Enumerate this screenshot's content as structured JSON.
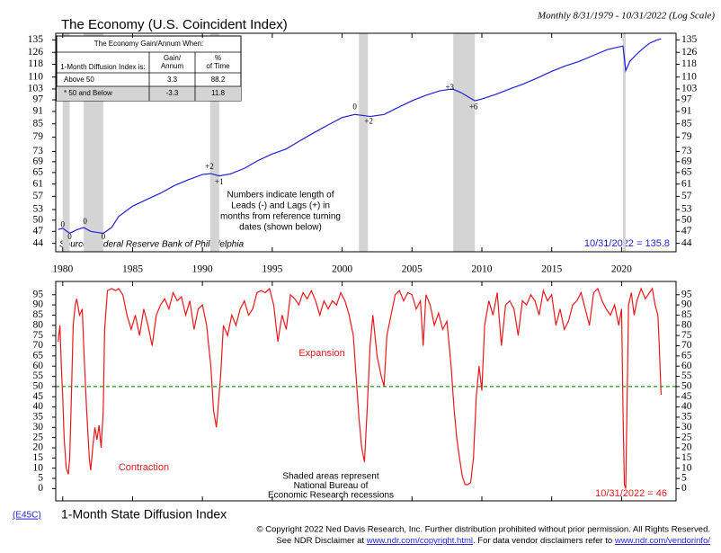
{
  "chart_data": [
    {
      "type": "line",
      "title": "The Economy (U.S. Coincident Index)",
      "subtitle": "Monthly 8/31/1979 - 10/31/2022 (Log Scale)",
      "log_scale": true,
      "xlim": [
        1979.5,
        2023.9
      ],
      "ylim": [
        42,
        140
      ],
      "xticks": [
        1980,
        1985,
        1990,
        1995,
        2000,
        2005,
        2010,
        2015,
        2020
      ],
      "yticks": [
        44,
        47,
        50,
        53,
        57,
        61,
        65,
        69,
        73,
        79,
        85,
        91,
        97,
        103,
        110,
        118,
        126,
        135
      ],
      "color": "#1f1fd6",
      "x": [
        1979.67,
        1980.0,
        1980.5,
        1981.0,
        1981.5,
        1982.0,
        1982.5,
        1982.9,
        1983.5,
        1984,
        1985,
        1986,
        1987,
        1988,
        1989,
        1990,
        1990.6,
        1991.2,
        1992,
        1993,
        1994,
        1995,
        1996,
        1997,
        1998,
        1999,
        2000,
        2000.9,
        2001.5,
        2002,
        2003,
        2004,
        2005,
        2006,
        2007,
        2007.9,
        2008.5,
        2009.5,
        2010,
        2011,
        2012,
        2013,
        2014,
        2015,
        2016,
        2017,
        2018,
        2019,
        2020.1,
        2020.3,
        2020.6,
        2021,
        2021.5,
        2022,
        2022.5,
        2022.83
      ],
      "values": [
        47.5,
        47.8,
        46.5,
        47.4,
        48.0,
        47.0,
        46.7,
        46.5,
        48.0,
        51,
        54,
        56,
        58,
        60.5,
        62.5,
        64.3,
        64.6,
        63.8,
        64.5,
        66.5,
        69.5,
        72,
        74,
        77.5,
        81,
        84.5,
        88,
        89.5,
        89,
        88.5,
        89.5,
        93,
        96.5,
        99.5,
        102,
        103,
        101,
        96.5,
        97.5,
        100,
        103,
        106,
        109.5,
        113.5,
        117,
        120,
        124,
        128,
        130.5,
        114,
        120,
        124,
        128.5,
        132.5,
        134.8,
        135.8
      ],
      "recessions": [
        [
          1980.0,
          1980.5
        ],
        [
          1981.5,
          1982.9
        ],
        [
          1990.55,
          1991.2
        ],
        [
          2001.2,
          2001.85
        ],
        [
          2007.95,
          2009.5
        ],
        [
          2020.1,
          2020.3
        ]
      ],
      "annotations": [
        {
          "label": "0",
          "x": 1980.0,
          "y": 48.6
        },
        {
          "label": "0",
          "x": 1980.5,
          "y": 45.5
        },
        {
          "label": "0",
          "x": 1981.6,
          "y": 49.5
        },
        {
          "label": "0",
          "x": 1982.9,
          "y": 45.5
        },
        {
          "label": "+2",
          "x": 1990.5,
          "y": 67
        },
        {
          "label": "+1",
          "x": 1991.2,
          "y": 61.5
        },
        {
          "label": "0",
          "x": 2000.9,
          "y": 93
        },
        {
          "label": "+2",
          "x": 2001.9,
          "y": 86
        },
        {
          "label": "+3",
          "x": 2007.7,
          "y": 103.5
        },
        {
          "label": "+6",
          "x": 2009.4,
          "y": 93
        }
      ],
      "note": [
        "Numbers indicate length of",
        "Leads (-) and Lags (+) in",
        "months from reference turning",
        "dates (shown below)"
      ],
      "source": "Source: Federal Reserve Bank of Philadelphia",
      "last_value_label": "10/31/2022 = 135.8",
      "table": {
        "title": "The Economy Gain/Annum When:",
        "columns": [
          [
            "1-Month Diffusion Index is:"
          ],
          [
            "Gain/",
            "Annum"
          ],
          [
            "%",
            "of Time"
          ]
        ],
        "rows": [
          [
            "Above 50",
            3.3,
            88.2
          ],
          [
            "*   50 and Below",
            -3.3,
            11.8
          ]
        ]
      }
    },
    {
      "type": "line",
      "title": "1-Month State Diffusion Index",
      "code": "(E45C)",
      "xlim": [
        1979.5,
        2023.9
      ],
      "ylim": [
        -6,
        101.5
      ],
      "yticks": [
        0,
        5,
        10,
        15,
        20,
        25,
        30,
        35,
        40,
        45,
        50,
        55,
        60,
        65,
        70,
        75,
        80,
        85,
        90,
        95
      ],
      "color": "#e8181c",
      "reference_line": 50,
      "reference_color": "#1a9a1a",
      "x": [
        1979.67,
        1979.8,
        1979.9,
        1980.0,
        1980.1,
        1980.25,
        1980.4,
        1980.5,
        1980.6,
        1980.75,
        1980.9,
        1981.0,
        1981.2,
        1981.4,
        1981.5,
        1981.7,
        1981.9,
        1982.0,
        1982.15,
        1982.3,
        1982.45,
        1982.6,
        1982.75,
        1982.9,
        1983.0,
        1983.2,
        1983.5,
        1983.8,
        1984.0,
        1984.3,
        1984.6,
        1984.9,
        1985.2,
        1985.5,
        1985.8,
        1986.1,
        1986.4,
        1986.7,
        1987.0,
        1987.3,
        1987.6,
        1987.9,
        1988.2,
        1988.5,
        1988.8,
        1989.1,
        1989.4,
        1989.7,
        1990.0,
        1990.3,
        1990.6,
        1990.8,
        1991.0,
        1991.1,
        1991.3,
        1991.5,
        1991.8,
        1992.1,
        1992.4,
        1992.7,
        1993.0,
        1993.3,
        1993.6,
        1993.9,
        1994.2,
        1994.5,
        1994.8,
        1995.1,
        1995.4,
        1995.7,
        1996.0,
        1996.3,
        1996.6,
        1996.9,
        1997.2,
        1997.5,
        1997.8,
        1998.1,
        1998.4,
        1998.7,
        1999.0,
        1999.3,
        1999.6,
        1999.9,
        2000.2,
        2000.5,
        2000.8,
        2001.0,
        2001.2,
        2001.4,
        2001.6,
        2001.8,
        2002.0,
        2002.2,
        2002.5,
        2002.8,
        2003.0,
        2003.2,
        2003.5,
        2003.8,
        2004.1,
        2004.4,
        2004.7,
        2005.0,
        2005.3,
        2005.6,
        2005.8,
        2006.0,
        2006.3,
        2006.6,
        2006.9,
        2007.2,
        2007.5,
        2007.8,
        2008.0,
        2008.2,
        2008.4,
        2008.6,
        2008.8,
        2009.0,
        2009.2,
        2009.4,
        2009.6,
        2009.8,
        2010.0,
        2010.2,
        2010.5,
        2010.8,
        2011.1,
        2011.4,
        2011.7,
        2012.0,
        2012.3,
        2012.6,
        2012.9,
        2013.2,
        2013.5,
        2013.8,
        2014.1,
        2014.4,
        2014.7,
        2015.0,
        2015.3,
        2015.6,
        2015.9,
        2016.2,
        2016.5,
        2016.8,
        2017.1,
        2017.4,
        2017.7,
        2018.0,
        2018.3,
        2018.6,
        2018.9,
        2019.2,
        2019.5,
        2019.8,
        2020.0,
        2020.1,
        2020.2,
        2020.3,
        2020.4,
        2020.5,
        2020.7,
        2020.9,
        2021.1,
        2021.4,
        2021.7,
        2022.0,
        2022.2,
        2022.4,
        2022.6,
        2022.7,
        2022.83
      ],
      "values": [
        72,
        80,
        60,
        45,
        25,
        10,
        7,
        15,
        40,
        80,
        90,
        93,
        85,
        88,
        70,
        40,
        15,
        9,
        20,
        30,
        24,
        31,
        20,
        38,
        78,
        97,
        98,
        97,
        98,
        95,
        85,
        78,
        85,
        75,
        88,
        80,
        70,
        85,
        90,
        93,
        88,
        96,
        92,
        94,
        85,
        92,
        78,
        88,
        90,
        80,
        60,
        38,
        30,
        38,
        55,
        80,
        75,
        85,
        80,
        88,
        92,
        85,
        88,
        96,
        97,
        96,
        98,
        90,
        72,
        85,
        78,
        95,
        93,
        90,
        96,
        93,
        97,
        92,
        85,
        92,
        88,
        92,
        90,
        96,
        92,
        85,
        75,
        55,
        35,
        20,
        13,
        40,
        70,
        85,
        65,
        55,
        50,
        75,
        85,
        95,
        97,
        92,
        96,
        95,
        88,
        92,
        70,
        95,
        90,
        80,
        86,
        78,
        82,
        60,
        40,
        25,
        15,
        6,
        2,
        2,
        3,
        15,
        45,
        60,
        48,
        80,
        92,
        85,
        96,
        70,
        90,
        92,
        88,
        75,
        92,
        90,
        95,
        92,
        85,
        97,
        92,
        95,
        80,
        88,
        78,
        82,
        90,
        92,
        96,
        88,
        80,
        96,
        98,
        92,
        88,
        85,
        90,
        80,
        88,
        40,
        2,
        0,
        45,
        90,
        96,
        85,
        92,
        98,
        93,
        96,
        98,
        90,
        85,
        70,
        46
      ],
      "expansion_label": "Expansion",
      "contraction_label": "Contraction",
      "note": [
        "Shaded areas represent",
        "National Bureau of",
        "Economic Research recessions"
      ],
      "last_value_label": "10/31/2022 = 46"
    }
  ],
  "footer": {
    "copyright": "© Copyright 2022 Ned Davis Research, Inc.  Further distribution prohibited without prior permission.  All Rights Reserved.",
    "disclaimer": [
      "See NDR Disclaimer at ",
      "www.ndr.com/copyright.html",
      ". For data vendor disclaimers refer to ",
      "www.ndr.com/vendorinfo/"
    ]
  }
}
